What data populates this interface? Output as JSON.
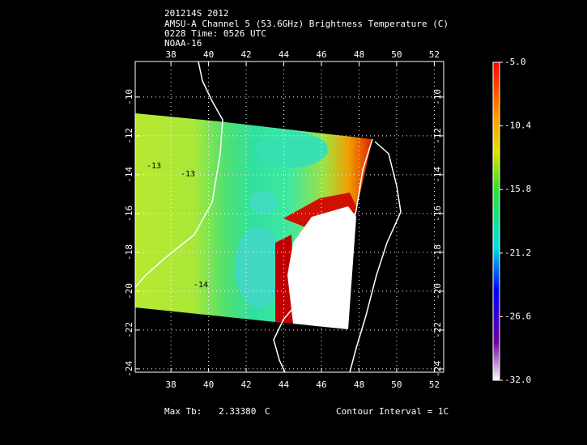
{
  "chart_data": {
    "type": "map",
    "title": [
      "201214S 2012",
      "AMSU-A Channel 5 (53.6GHz) Brightness Temperature (C)",
      "0228 Time: 0526 UTC",
      "NOAA-16"
    ],
    "xlim": [
      36.1,
      52.5
    ],
    "xticks": [
      38,
      40,
      42,
      44,
      46,
      48,
      50,
      52
    ],
    "ylim": [
      -24.17,
      -8.17
    ],
    "yticks": [
      -24,
      -22,
      -20,
      -18,
      -16,
      -14,
      -12,
      -10
    ],
    "grid": true,
    "contour_labels": [
      "-13",
      "-13",
      "-14"
    ],
    "colorbar": {
      "lim": [
        -32,
        -5
      ],
      "ticks": [
        {
          "value": -5,
          "label": "-5.0"
        },
        -10.4,
        -15.8,
        -21.2,
        -26.6,
        {
          "value": -32,
          "label": "-32.0"
        }
      ]
    },
    "footer": {
      "max_label": "Max Tb:",
      "max_value": {
        "value": 2.3338,
        "label": "2.33380"
      },
      "max_unit": "C",
      "contour_interval": "Contour Interval = 1C"
    }
  }
}
